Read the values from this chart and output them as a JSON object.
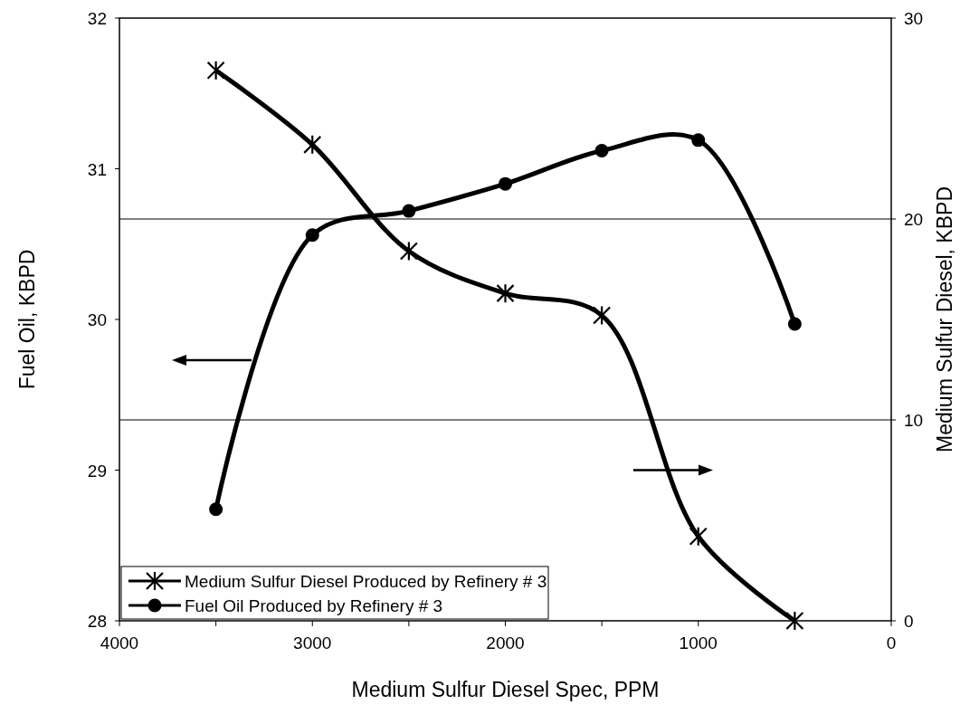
{
  "chart_data": {
    "type": "line",
    "xlabel": "Medium Sulfur Diesel Spec, PPM",
    "ylabel": "Fuel Oil, KBPD",
    "y2label": "Medium Sulfur Diesel, KBPD",
    "x": [
      3500,
      3000,
      2500,
      2000,
      1500,
      1000,
      500
    ],
    "xlim": [
      4000,
      0
    ],
    "xticks": [
      4000,
      {
        "value": 3500,
        "label": null
      },
      3000,
      {
        "value": 2500,
        "label": null
      },
      2000,
      {
        "value": 1500,
        "label": null
      },
      1000,
      {
        "value": 500,
        "label": null
      },
      0
    ],
    "ylim": [
      28,
      32
    ],
    "yticks": [
      28,
      29,
      30,
      31,
      32
    ],
    "y2lim": [
      0,
      30
    ],
    "y2ticks": [
      0,
      10,
      20,
      30
    ],
    "grid": "y",
    "legend": "bottom left",
    "line_style": "solid",
    "series": [
      {
        "name": "Medium Sulfur Diesel Produced by Refinery # 3",
        "color": "#000000",
        "axis": "y2",
        "marker": "cross",
        "values": [
          27.4,
          23.7,
          18.4,
          16.3,
          15.2,
          4.2,
          0
        ]
      },
      {
        "name": "Fuel Oil Produced by Refinery # 3",
        "color": "#000000",
        "axis": "y",
        "marker": "circle",
        "values": [
          28.74,
          30.56,
          30.72,
          30.9,
          31.12,
          31.19,
          29.97
        ]
      }
    ]
  }
}
